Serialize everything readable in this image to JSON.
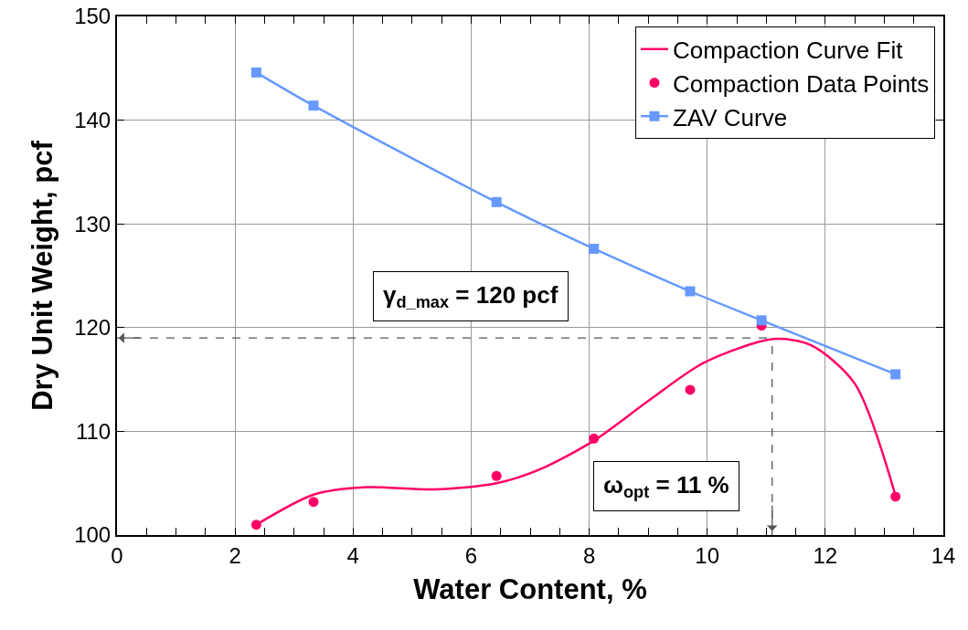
{
  "chart_data": {
    "type": "line",
    "xlabel": "Water Content, %",
    "ylabel": "Dry Unit Weight, pcf",
    "xlim": [
      0,
      14
    ],
    "xticks": [
      0,
      2,
      4,
      6,
      8,
      10,
      12,
      14
    ],
    "ylim": [
      100,
      150
    ],
    "yticks": [
      100,
      110,
      120,
      130,
      140,
      150
    ],
    "grid": true,
    "legend": "top right",
    "series": [
      {
        "name": "Compaction Curve Fit",
        "marker": "none",
        "color": "#ff0066",
        "x": [
          2.36,
          3.33,
          4.18,
          5.37,
          6.43,
          7.19,
          8.08,
          9.02,
          9.94,
          11.12,
          11.76,
          12.5,
          13.19
        ],
        "values": [
          101.0,
          103.9,
          104.6,
          104.4,
          105.0,
          106.4,
          109.1,
          113.0,
          116.6,
          118.9,
          118.3,
          114.6,
          103.8
        ]
      },
      {
        "name": "Compaction Data Points",
        "type": "scatter",
        "marker": "circle",
        "color": "#ff0066",
        "x": [
          2.36,
          3.33,
          6.43,
          8.08,
          9.71,
          10.92,
          13.19
        ],
        "values": [
          101.0,
          103.2,
          105.7,
          109.3,
          114.0,
          120.2,
          103.7
        ]
      },
      {
        "name": "ZAV Curve",
        "marker": "square",
        "color": "#6699ff",
        "x": [
          2.36,
          3.33,
          6.43,
          8.08,
          9.71,
          10.92,
          13.19
        ],
        "values": [
          144.6,
          141.4,
          132.1,
          127.6,
          123.5,
          120.7,
          115.5
        ]
      }
    ],
    "ref_lines": [
      {
        "axis": "y",
        "value": 119,
        "line_style": "dashed",
        "color": "#555555"
      },
      {
        "axis": "x",
        "value": 11.1,
        "line_style": "dashed",
        "color": "#555555"
      }
    ],
    "annotations": [
      "γ$_{d_max}$ = 120 pcf",
      "ω$_{opt}$ = 11 %"
    ]
  }
}
